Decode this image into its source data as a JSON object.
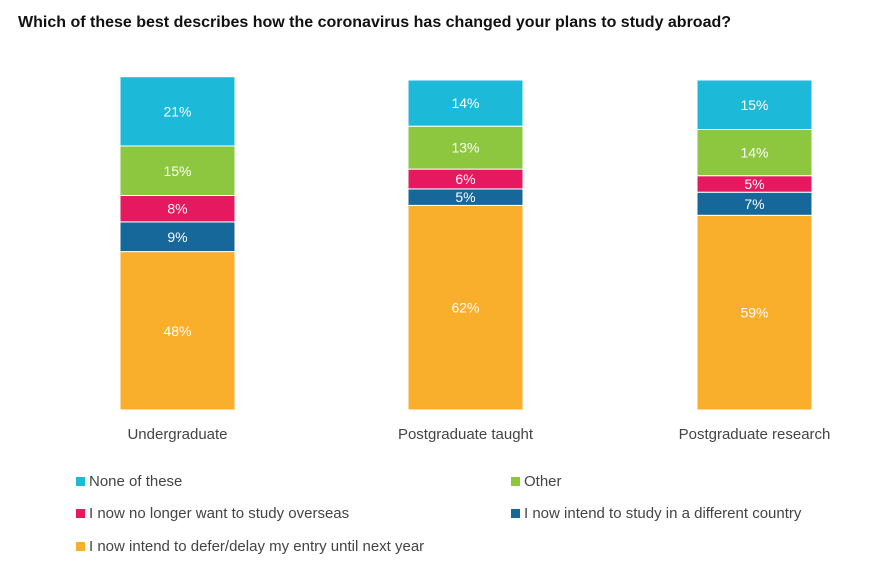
{
  "title": "Which of these best describes how the coronavirus has changed your plans to study abroad?",
  "chart_data": {
    "type": "bar",
    "stacked": true,
    "orientation": "vertical",
    "unit": "%",
    "categories": [
      "Undergraduate",
      "Postgraduate taught",
      "Postgraduate research"
    ],
    "series": [
      {
        "name": "I now intend to defer/delay my entry until next year",
        "color": "#f9ae2c",
        "values": [
          48,
          62,
          59
        ]
      },
      {
        "name": "I now intend to study in a different country",
        "color": "#16679a",
        "values": [
          9,
          5,
          7
        ]
      },
      {
        "name": "I now no longer want to study overseas",
        "color": "#e6185f",
        "values": [
          8,
          6,
          5
        ]
      },
      {
        "name": "Other",
        "color": "#8dc63f",
        "values": [
          15,
          13,
          14
        ]
      },
      {
        "name": "None of these",
        "color": "#1cbad8",
        "values": [
          21,
          14,
          15
        ]
      }
    ],
    "data_label_suffix": "%",
    "legend": {
      "placement": "bottom",
      "order": [
        4,
        3,
        2,
        1,
        0
      ]
    },
    "grid": false
  }
}
